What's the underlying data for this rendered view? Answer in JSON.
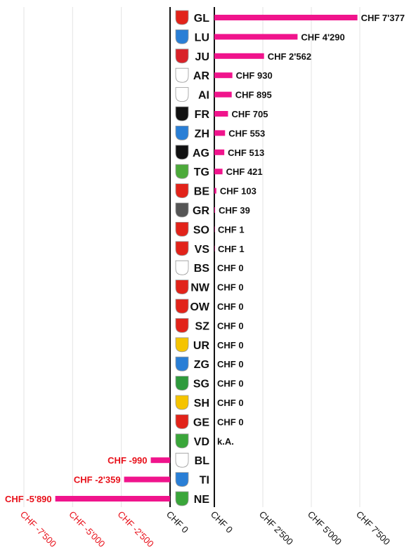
{
  "chart_data": {
    "type": "bar",
    "orientation": "horizontal",
    "rows": [
      {
        "code": "GL",
        "value": 7377,
        "label": "CHF 7'377",
        "shield": "#e2231a"
      },
      {
        "code": "LU",
        "value": 4290,
        "label": "CHF 4'290",
        "shield": "#2a7fd6"
      },
      {
        "code": "JU",
        "value": 2562,
        "label": "CHF 2'562",
        "shield": "#d92128"
      },
      {
        "code": "AR",
        "value": 930,
        "label": "CHF 930",
        "shield": "#ffffff"
      },
      {
        "code": "AI",
        "value": 895,
        "label": "CHF 895",
        "shield": "#ffffff"
      },
      {
        "code": "FR",
        "value": 705,
        "label": "CHF 705",
        "shield": "#111111"
      },
      {
        "code": "ZH",
        "value": 553,
        "label": "CHF 553",
        "shield": "#2a7fd6"
      },
      {
        "code": "AG",
        "value": 513,
        "label": "CHF 513",
        "shield": "#111111"
      },
      {
        "code": "TG",
        "value": 421,
        "label": "CHF 421",
        "shield": "#4caa3a"
      },
      {
        "code": "BE",
        "value": 103,
        "label": "CHF 103",
        "shield": "#e2231a"
      },
      {
        "code": "GR",
        "value": 39,
        "label": "CHF 39",
        "shield": "#555555"
      },
      {
        "code": "SO",
        "value": 1,
        "label": "CHF 1",
        "shield": "#e2231a"
      },
      {
        "code": "VS",
        "value": 1,
        "label": "CHF 1",
        "shield": "#e2231a"
      },
      {
        "code": "BS",
        "value": 0,
        "label": "CHF 0",
        "shield": "#ffffff"
      },
      {
        "code": "NW",
        "value": 0,
        "label": "CHF 0",
        "shield": "#e2231a"
      },
      {
        "code": "OW",
        "value": 0,
        "label": "CHF 0",
        "shield": "#e2231a"
      },
      {
        "code": "SZ",
        "value": 0,
        "label": "CHF 0",
        "shield": "#e2231a"
      },
      {
        "code": "UR",
        "value": 0,
        "label": "CHF 0",
        "shield": "#f5c400"
      },
      {
        "code": "ZG",
        "value": 0,
        "label": "CHF 0",
        "shield": "#2a7fd6"
      },
      {
        "code": "SG",
        "value": 0,
        "label": "CHF 0",
        "shield": "#2e9a3c"
      },
      {
        "code": "SH",
        "value": 0,
        "label": "CHF 0",
        "shield": "#f5c400"
      },
      {
        "code": "GE",
        "value": 0,
        "label": "CHF 0",
        "shield": "#e2231a"
      },
      {
        "code": "VD",
        "value": null,
        "label": "k.A.",
        "shield": "#3aa63a"
      },
      {
        "code": "BL",
        "value": -990,
        "label": "CHF -990",
        "shield": "#ffffff"
      },
      {
        "code": "TI",
        "value": -2359,
        "label": "CHF -2'359",
        "shield": "#2a7fd6"
      },
      {
        "code": "NE",
        "value": -5890,
        "label": "CHF -5'890",
        "shield": "#3aa63a"
      }
    ],
    "neg_axis": {
      "range": [
        -7500,
        0
      ],
      "ticks": [
        -7500,
        -5000,
        -2500,
        0
      ],
      "tick_labels": [
        "CHF -7'500",
        "CHF -5'000",
        "CHF -2'500",
        "CHF 0"
      ]
    },
    "pos_axis": {
      "range": [
        0,
        7500
      ],
      "ticks": [
        0,
        2500,
        5000,
        7500
      ],
      "tick_labels": [
        "CHF 0",
        "CHF 2'500",
        "CHF 5'000",
        "CHF 7'500"
      ]
    },
    "grid": true,
    "colors": {
      "bar": "#f0148c",
      "negative_text": "#e8101a",
      "text": "#111111",
      "grid": "#e3e3e3"
    }
  }
}
